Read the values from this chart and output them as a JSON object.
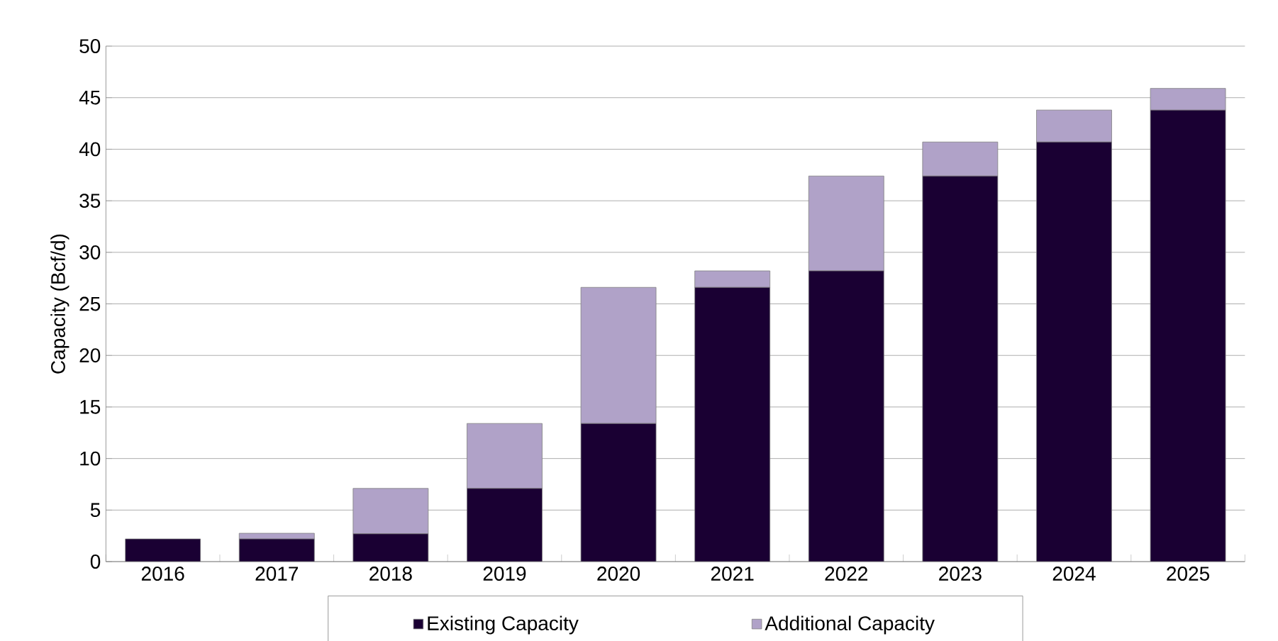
{
  "chart_data": {
    "type": "bar",
    "stacked": true,
    "ylabel": "Capacity (Bcf/d)",
    "categories": [
      "2016",
      "2017",
      "2018",
      "2019",
      "2020",
      "2021",
      "2022",
      "2023",
      "2024",
      "2025"
    ],
    "series": [
      {
        "name": "Existing Capacity",
        "color": "#1a0033",
        "values": [
          2.2,
          2.2,
          2.7,
          7.1,
          13.4,
          26.6,
          28.2,
          37.4,
          40.7,
          43.8
        ]
      },
      {
        "name": "Additional Capacity",
        "color": "#b0a2c8",
        "values": [
          0,
          0.55,
          4.4,
          6.3,
          13.2,
          1.6,
          9.2,
          3.3,
          3.1,
          2.1
        ]
      }
    ],
    "ylim": [
      0,
      50
    ],
    "yticks": [
      0,
      5,
      10,
      15,
      20,
      25,
      30,
      35,
      40,
      45,
      50
    ],
    "grid": "y",
    "legend": "bottom"
  }
}
